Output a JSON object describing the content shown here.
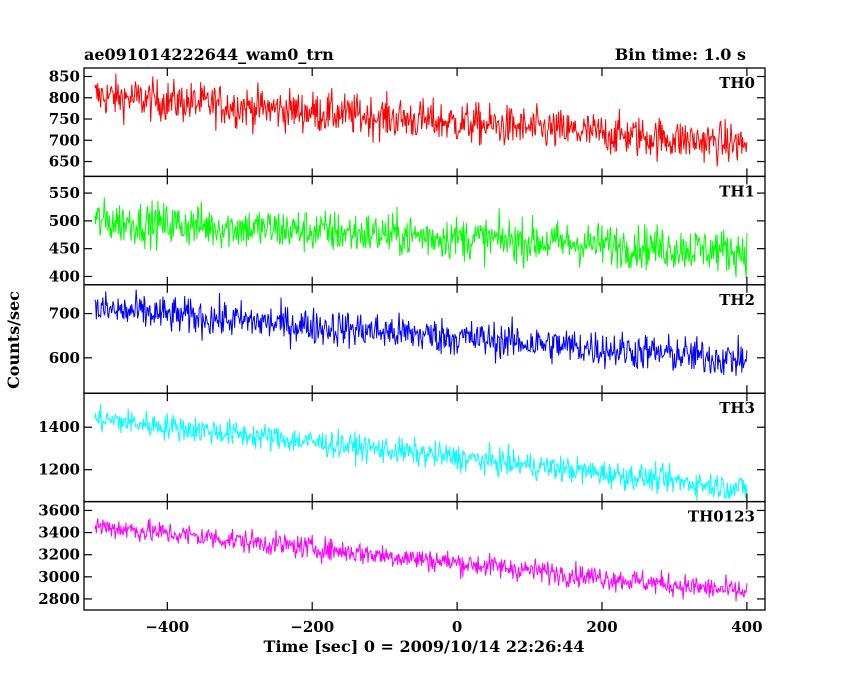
{
  "header": {
    "title": "ae091014222644_wam0_trn",
    "bin_time": "Bin time: 1.0 s"
  },
  "chart_data": {
    "type": "line",
    "x_label": "Time [sec] 0 = 2009/10/14 22:26:44",
    "y_label": "Counts/sec",
    "xlim": [
      -515,
      425
    ],
    "x_ticks": [
      -400,
      -200,
      0,
      200,
      400
    ],
    "x_range_data": [
      -500,
      400
    ],
    "grid": false,
    "panels": [
      {
        "name": "TH0",
        "color": "#ff0000",
        "ylim": [
          615,
          870
        ],
        "y_ticks": [
          650,
          700,
          750,
          800,
          850
        ],
        "start_value": 805,
        "end_value": 690,
        "noise": 35
      },
      {
        "name": "TH1",
        "color": "#00ff00",
        "ylim": [
          385,
          580
        ],
        "y_ticks": [
          400,
          450,
          500,
          550
        ],
        "start_value": 500,
        "end_value": 445,
        "noise": 28
      },
      {
        "name": "TH2",
        "color": "#0000ff",
        "ylim": [
          520,
          765
        ],
        "y_ticks": [
          600,
          700
        ],
        "start_value": 710,
        "end_value": 595,
        "noise": 30
      },
      {
        "name": "TH3",
        "color": "#00ffff",
        "ylim": [
          1050,
          1560
        ],
        "y_ticks": [
          1200,
          1400
        ],
        "start_value": 1440,
        "end_value": 1110,
        "noise": 45
      },
      {
        "name": "TH0123",
        "color": "#ff00ff",
        "ylim": [
          2700,
          3680
        ],
        "y_ticks": [
          2800,
          3000,
          3200,
          3400,
          3600
        ],
        "start_value": 3460,
        "end_value": 2860,
        "noise": 75
      }
    ]
  }
}
